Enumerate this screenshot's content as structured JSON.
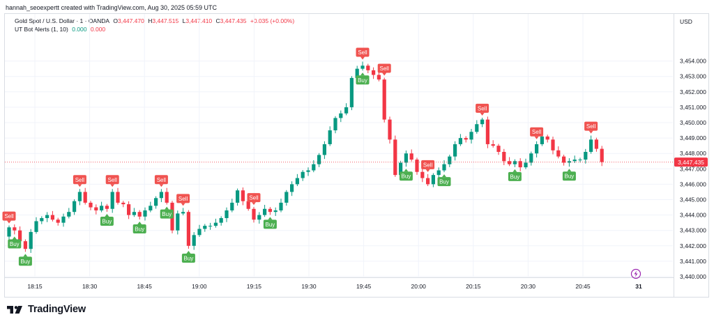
{
  "attribution": "hannah_seoexpertt created with TradingView.com, Aug 30, 2025 05:59 UTC",
  "legend": {
    "symbol": "Gold Spot / U.S. Dollar · 1 · OANDA",
    "open_label": "O",
    "open": "3,447.470",
    "high_label": "H",
    "high": "3,447.515",
    "low_label": "L",
    "low": "3,447.410",
    "close_label": "C",
    "close": "3,447.435",
    "change": "+0.035 (+0.00%)",
    "indicator": "UT Bot Alerts (1, 10)",
    "ind_val1": "0.000",
    "ind_val2": "0.000"
  },
  "currency": "USD",
  "brand": "TradingView",
  "colors": {
    "up": "#089981",
    "down": "#f23645",
    "buy_label": "#4caf50",
    "sell_label": "#f05350",
    "price_tag": "#f23645",
    "lightning": "#9c27b0"
  },
  "signal_labels": {
    "buy": "Buy",
    "sell": "Sell"
  },
  "end_marker": "31",
  "chart_data": {
    "type": "candlestick",
    "y_ticks": [
      "3,454.000",
      "3,453.000",
      "3,452.000",
      "3,451.000",
      "3,450.000",
      "3,449.000",
      "3,448.000",
      "3,447.000",
      "3,446.000",
      "3,445.000",
      "3,444.000",
      "3,443.000",
      "3,442.000",
      "3,441.000",
      "3,440.000"
    ],
    "ylim": [
      3440,
      3454
    ],
    "x_ticks": [
      "18:15",
      "18:30",
      "18:45",
      "19:00",
      "19:15",
      "19:30",
      "19:45",
      "20:00",
      "20:15",
      "20:30",
      "20:45"
    ],
    "grid": true,
    "last_price": "3,447.435",
    "closes": [
      3443.2,
      3443.0,
      3442.3,
      3441.8,
      3442.9,
      3443.6,
      3443.8,
      3444.0,
      3443.7,
      3443.5,
      3443.9,
      3444.2,
      3444.9,
      3445.5,
      3444.8,
      3444.5,
      3444.3,
      3444.6,
      3444.4,
      3445.5,
      3444.8,
      3444.7,
      3444.0,
      3444.2,
      3443.9,
      3444.3,
      3444.6,
      3445.1,
      3445.5,
      3444.8,
      3443.0,
      3444.1,
      3444.2,
      3442.0,
      3442.7,
      3443.1,
      3443.3,
      3443.3,
      3443.5,
      3443.8,
      3444.3,
      3444.8,
      3445.6,
      3444.9,
      3444.4,
      3443.7,
      3444.0,
      3444.4,
      3444.2,
      3444.3,
      3444.8,
      3445.5,
      3446.0,
      3446.4,
      3446.8,
      3446.9,
      3447.3,
      3447.9,
      3448.6,
      3449.5,
      3450.3,
      3450.6,
      3451.0,
      3452.9,
      3453.5,
      3453.7,
      3453.4,
      3453.1,
      3452.8,
      3450.2,
      3448.9,
      3446.6,
      3447.4,
      3448.0,
      3447.6,
      3446.8,
      3446.4,
      3446.0,
      3446.6,
      3446.9,
      3447.3,
      3447.8,
      3448.6,
      3449.0,
      3448.9,
      3449.4,
      3449.9,
      3450.2,
      3448.6,
      3448.5,
      3448.1,
      3447.5,
      3447.3,
      3447.5,
      3447.1,
      3447.4,
      3448.0,
      3448.6,
      3449.1,
      3448.9,
      3448.2,
      3447.8,
      3447.4,
      3447.5,
      3447.6,
      3447.6,
      3448.1,
      3448.9,
      3448.3,
      3447.44
    ],
    "signals": [
      {
        "bar": 0,
        "type": "sell"
      },
      {
        "bar": 1,
        "type": "buy"
      },
      {
        "bar": 3,
        "type": "buy"
      },
      {
        "bar": 13,
        "type": "sell"
      },
      {
        "bar": 18,
        "type": "buy"
      },
      {
        "bar": 19,
        "type": "sell"
      },
      {
        "bar": 24,
        "type": "buy"
      },
      {
        "bar": 28,
        "type": "sell"
      },
      {
        "bar": 29,
        "type": "buy"
      },
      {
        "bar": 32,
        "type": "sell"
      },
      {
        "bar": 33,
        "type": "buy"
      },
      {
        "bar": 45,
        "type": "sell"
      },
      {
        "bar": 48,
        "type": "buy"
      },
      {
        "bar": 65,
        "type": "sell"
      },
      {
        "bar": 65,
        "type": "buy"
      },
      {
        "bar": 69,
        "type": "sell"
      },
      {
        "bar": 73,
        "type": "buy"
      },
      {
        "bar": 77,
        "type": "sell"
      },
      {
        "bar": 80,
        "type": "buy"
      },
      {
        "bar": 87,
        "type": "sell"
      },
      {
        "bar": 93,
        "type": "buy"
      },
      {
        "bar": 97,
        "type": "sell"
      },
      {
        "bar": 103,
        "type": "buy"
      },
      {
        "bar": 107,
        "type": "sell"
      }
    ]
  }
}
